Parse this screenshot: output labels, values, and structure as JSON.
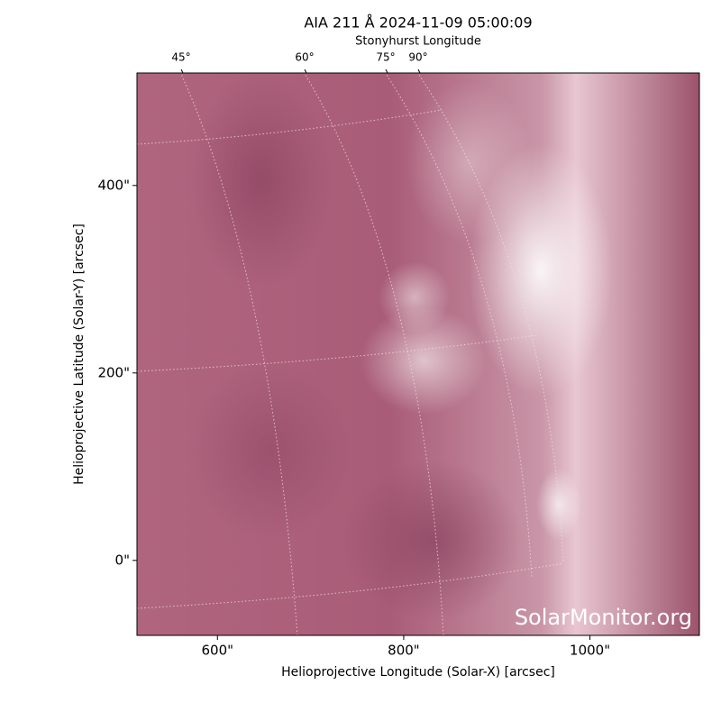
{
  "chart_data": {
    "type": "image",
    "title": "AIA 211 Å 2024-11-09 05:00:09",
    "top_axis_label": "Stonyhurst Longitude",
    "top_ticks": [
      {
        "value": 45,
        "label": "45°"
      },
      {
        "value": 60,
        "label": "60°"
      },
      {
        "value": 75,
        "label": "75°"
      },
      {
        "value": 90,
        "label": "90°"
      }
    ],
    "xlabel": "Helioprojective Longitude (Solar-X) [arcsec]",
    "ylabel": "Helioprojective Latitude (Solar-Y) [arcsec]",
    "xlim": [
      513.6,
      1117.5
    ],
    "ylim": [
      -80,
      520
    ],
    "xticks": [
      {
        "value": 600,
        "label": "600\""
      },
      {
        "value": 800,
        "label": "800\""
      },
      {
        "value": 1000,
        "label": "1000\""
      }
    ],
    "yticks": [
      {
        "value": 0,
        "label": "0\""
      },
      {
        "value": 200,
        "label": "200\""
      },
      {
        "value": 400,
        "label": "400\""
      }
    ],
    "watermark": "SolarMonitor.org",
    "color": "#a35a72"
  }
}
